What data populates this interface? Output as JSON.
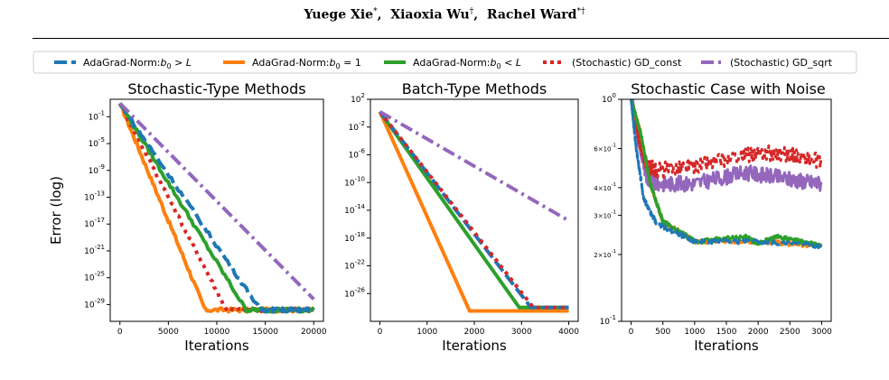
{
  "header": {
    "authors": [
      {
        "name": "Yuege Xie",
        "mark": "*"
      },
      {
        "name": "Xiaoxia Wu",
        "mark": "†"
      },
      {
        "name": "Rachel Ward",
        "mark": "*†"
      }
    ]
  },
  "legend": {
    "entries": [
      {
        "label": "AdaGrad-Norm:",
        "math": "b",
        "sub": "0",
        "rel": " > ",
        "rhs": "L",
        "color": "#1f77b4",
        "style": "dashed"
      },
      {
        "label": "AdaGrad-Norm:",
        "math": "b",
        "sub": "0",
        "rel": " = ",
        "rhs": "1",
        "color": "#ff7f0e",
        "style": "solid"
      },
      {
        "label": "AdaGrad-Norm:",
        "math": "b",
        "sub": "0",
        "rel": " < ",
        "rhs": "L",
        "color": "#2ca02c",
        "style": "solid"
      },
      {
        "label": "(Stochastic) GD_const",
        "color": "#d62728",
        "style": "dotted"
      },
      {
        "label": "(Stochastic) GD_sqrt",
        "color": "#9467bd",
        "style": "dashdot"
      }
    ]
  },
  "chart_data": [
    {
      "type": "line",
      "title": "Stochastic-Type Methods",
      "xlabel": "Iterations",
      "ylabel": "Error (log)",
      "yscale": "log",
      "xlim": [
        -1000,
        21000
      ],
      "ylim_exp": [
        -31.5,
        1.6
      ],
      "xticks": [
        0,
        5000,
        10000,
        15000,
        20000
      ],
      "yticks": [
        {
          "mant": "10",
          "exp": "-1",
          "value": 0.1
        },
        {
          "mant": "10",
          "exp": "-5",
          "value": 1e-05
        },
        {
          "mant": "10",
          "exp": "-9",
          "value": 1e-09
        },
        {
          "mant": "10",
          "exp": "-13",
          "value": 1e-13
        },
        {
          "mant": "10",
          "exp": "-17",
          "value": 1e-17
        },
        {
          "mant": "10",
          "exp": "-21",
          "value": 1e-21
        },
        {
          "mant": "10",
          "exp": "-25",
          "value": 1e-25
        },
        {
          "mant": "10",
          "exp": "-29",
          "value": 1e-29
        }
      ],
      "series": [
        {
          "color": "#ff7f0e",
          "style": "solid",
          "noise": 0.3,
          "points": [
            [
              0,
              1.0
            ],
            [
              8800,
              -29.8
            ],
            [
              20000,
              -29.8
            ]
          ]
        },
        {
          "color": "#d62728",
          "style": "dotted",
          "noise": 0.3,
          "points": [
            [
              0,
              1.0
            ],
            [
              11000,
              -29.8
            ],
            [
              20000,
              -29.8
            ]
          ]
        },
        {
          "color": "#2ca02c",
          "style": "solid",
          "noise": 0.3,
          "points": [
            [
              0,
              1.0
            ],
            [
              13000,
              -29.8
            ],
            [
              20000,
              -29.8
            ]
          ]
        },
        {
          "color": "#1f77b4",
          "style": "dashed",
          "noise": 0.3,
          "points": [
            [
              0,
              1.0
            ],
            [
              14500,
              -29.8
            ],
            [
              20000,
              -29.8
            ]
          ]
        },
        {
          "color": "#9467bd",
          "style": "dashdot",
          "noise": 0.0,
          "points": [
            [
              0,
              1.0
            ],
            [
              20000,
              -28.2
            ]
          ]
        }
      ]
    },
    {
      "type": "line",
      "title": "Batch-Type Methods",
      "xlabel": "Iterations",
      "ylabel": "",
      "yscale": "log",
      "xlim": [
        -200,
        4200
      ],
      "ylim_exp": [
        -30.0,
        2.0
      ],
      "xticks": [
        0,
        1000,
        2000,
        3000,
        4000
      ],
      "yticks": [
        {
          "mant": "10",
          "exp": "2",
          "value": 100
        },
        {
          "mant": "10",
          "exp": "-2",
          "value": 0.01
        },
        {
          "mant": "10",
          "exp": "-6",
          "value": 1e-06
        },
        {
          "mant": "10",
          "exp": "-10",
          "value": 1e-10
        },
        {
          "mant": "10",
          "exp": "-14",
          "value": 1e-14
        },
        {
          "mant": "10",
          "exp": "-18",
          "value": 1e-18
        },
        {
          "mant": "10",
          "exp": "-22",
          "value": 1e-22
        },
        {
          "mant": "10",
          "exp": "-26",
          "value": 1e-26
        }
      ],
      "series": [
        {
          "color": "#ff7f0e",
          "style": "solid",
          "noise": 0.0,
          "points": [
            [
              0,
              0.2
            ],
            [
              1900,
              -28.5
            ],
            [
              4000,
              -28.5
            ]
          ]
        },
        {
          "color": "#2ca02c",
          "style": "solid",
          "noise": 0.0,
          "points": [
            [
              0,
              0.2
            ],
            [
              2950,
              -28.0
            ],
            [
              4000,
              -28.0
            ]
          ]
        },
        {
          "color": "#1f77b4",
          "style": "dashed",
          "noise": 0.0,
          "points": [
            [
              0,
              0.2
            ],
            [
              3200,
              -28.0
            ],
            [
              4000,
              -28.0
            ]
          ]
        },
        {
          "color": "#d62728",
          "style": "dotted",
          "noise": 0.0,
          "points": [
            [
              0,
              0.2
            ],
            [
              3250,
              -28.0
            ],
            [
              4000,
              -28.0
            ]
          ]
        },
        {
          "color": "#9467bd",
          "style": "dashdot",
          "noise": 0.0,
          "points": [
            [
              0,
              0.2
            ],
            [
              4000,
              -15.5
            ]
          ]
        }
      ]
    },
    {
      "type": "line",
      "title": "Stochastic Case with Noise",
      "xlabel": "Iterations",
      "ylabel": "",
      "yscale": "log",
      "xlim": [
        -150,
        3150
      ],
      "ylim_exp": [
        -1.0,
        0.0
      ],
      "xticks": [
        0,
        500,
        1000,
        1500,
        2000,
        2500,
        3000
      ],
      "yticks": [
        {
          "mant": "10",
          "exp": "0",
          "value": 1,
          "big": true
        },
        {
          "mant": "6×10",
          "exp": "-1",
          "value": 0.6
        },
        {
          "mant": "4×10",
          "exp": "-1",
          "value": 0.4
        },
        {
          "mant": "3×10",
          "exp": "-1",
          "value": 0.3
        },
        {
          "mant": "2×10",
          "exp": "-1",
          "value": 0.2
        },
        {
          "mant": "10",
          "exp": "-1",
          "value": 0.1,
          "big": true
        }
      ],
      "series": [
        {
          "color": "#9467bd",
          "style": "solid",
          "noise": 0.035,
          "points": [
            [
              0,
              0.0
            ],
            [
              100,
              -0.15
            ],
            [
              250,
              -0.35
            ],
            [
              400,
              -0.38
            ],
            [
              1000,
              -0.38
            ],
            [
              1800,
              -0.33
            ],
            [
              2500,
              -0.36
            ],
            [
              3000,
              -0.38
            ]
          ]
        },
        {
          "color": "#d62728",
          "style": "dotted",
          "noise": 0.035,
          "points": [
            [
              0,
              0.0
            ],
            [
              100,
              -0.15
            ],
            [
              250,
              -0.3
            ],
            [
              400,
              -0.32
            ],
            [
              1000,
              -0.3
            ],
            [
              1800,
              -0.25
            ],
            [
              2300,
              -0.24
            ],
            [
              3000,
              -0.28
            ]
          ]
        },
        {
          "color": "#ff7f0e",
          "style": "solid",
          "noise": 0.01,
          "points": [
            [
              0,
              0.0
            ],
            [
              150,
              -0.15
            ],
            [
              300,
              -0.38
            ],
            [
              500,
              -0.55
            ],
            [
              1000,
              -0.64
            ],
            [
              2000,
              -0.64
            ],
            [
              3000,
              -0.66
            ]
          ]
        },
        {
          "color": "#2ca02c",
          "style": "solid",
          "noise": 0.01,
          "points": [
            [
              0,
              0.0
            ],
            [
              150,
              -0.15
            ],
            [
              300,
              -0.38
            ],
            [
              500,
              -0.55
            ],
            [
              1000,
              -0.64
            ],
            [
              1800,
              -0.62
            ],
            [
              2000,
              -0.65
            ],
            [
              2300,
              -0.62
            ],
            [
              3000,
              -0.66
            ]
          ]
        },
        {
          "color": "#1f77b4",
          "style": "dashed",
          "noise": 0.01,
          "points": [
            [
              0,
              0.0
            ],
            [
              80,
              -0.22
            ],
            [
              200,
              -0.45
            ],
            [
              400,
              -0.56
            ],
            [
              1000,
              -0.64
            ],
            [
              2000,
              -0.64
            ],
            [
              3000,
              -0.66
            ]
          ]
        }
      ]
    }
  ]
}
